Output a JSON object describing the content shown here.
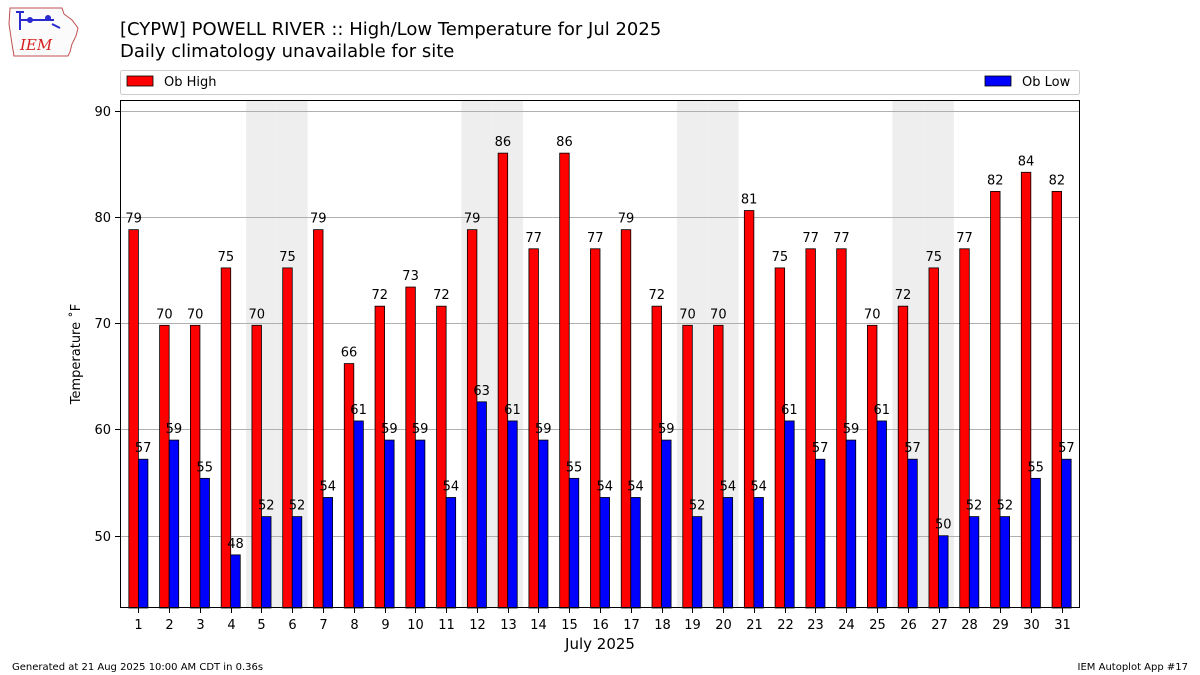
{
  "header": {
    "title": "[CYPW] POWELL RIVER :: High/Low Temperature for Jul 2025",
    "subtitle": "Daily climatology unavailable for site"
  },
  "logo": {
    "text": "IEM"
  },
  "footer": {
    "generated": "Generated at 21 Aug 2025 10:00 AM CDT in 0.36s",
    "app": "IEM Autoplot App #17"
  },
  "colors": {
    "high": "#ff0000",
    "low": "#0000ff",
    "weekend_band": "#eeeeee",
    "grid": "#b0b0b0"
  },
  "chart_data": {
    "type": "bar",
    "title": "[CYPW] POWELL RIVER :: High/Low Temperature for Jul 2025",
    "subtitle": "Daily climatology unavailable for site",
    "xlabel": "July 2025",
    "ylabel": "Temperature ˚F",
    "ylim": [
      43.2,
      91
    ],
    "yticks": [
      50,
      60,
      70,
      80,
      90
    ],
    "grid": true,
    "legend_position": "top",
    "categories": [
      "1",
      "2",
      "3",
      "4",
      "5",
      "6",
      "7",
      "8",
      "9",
      "10",
      "11",
      "12",
      "13",
      "14",
      "15",
      "16",
      "17",
      "18",
      "19",
      "20",
      "21",
      "22",
      "23",
      "24",
      "25",
      "26",
      "27",
      "28",
      "29",
      "30",
      "31"
    ],
    "shaded_days": [
      5,
      6,
      12,
      13,
      19,
      20,
      26,
      27
    ],
    "series": [
      {
        "name": "Ob High",
        "color": "#ff0000",
        "values": [
          79,
          70,
          70,
          75,
          70,
          75,
          79,
          66,
          72,
          73,
          72,
          79,
          86,
          77,
          86,
          77,
          79,
          72,
          70,
          70,
          81,
          75,
          77,
          77,
          70,
          72,
          75,
          77,
          82,
          84,
          82
        ],
        "bar_tops": [
          78.8,
          69.8,
          69.8,
          75.2,
          69.8,
          75.2,
          78.8,
          66.2,
          71.6,
          73.4,
          71.6,
          78.8,
          86.0,
          77.0,
          86.0,
          77.0,
          78.8,
          71.6,
          69.8,
          69.8,
          80.6,
          75.2,
          77.0,
          77.0,
          69.8,
          71.6,
          75.2,
          77.0,
          82.4,
          84.2,
          82.4
        ]
      },
      {
        "name": "Ob Low",
        "color": "#0000ff",
        "values": [
          57,
          59,
          55,
          48,
          52,
          52,
          54,
          61,
          59,
          59,
          54,
          63,
          61,
          59,
          55,
          54,
          54,
          59,
          52,
          54,
          54,
          61,
          57,
          59,
          61,
          57,
          50,
          52,
          52,
          55,
          57
        ],
        "bar_tops": [
          57.2,
          59.0,
          55.4,
          48.2,
          51.8,
          51.8,
          53.6,
          60.8,
          59.0,
          59.0,
          53.6,
          62.6,
          60.8,
          59.0,
          55.4,
          53.6,
          53.6,
          59.0,
          51.8,
          53.6,
          53.6,
          60.8,
          57.2,
          59.0,
          60.8,
          57.2,
          50.0,
          51.8,
          51.8,
          55.4,
          57.2
        ]
      }
    ]
  }
}
